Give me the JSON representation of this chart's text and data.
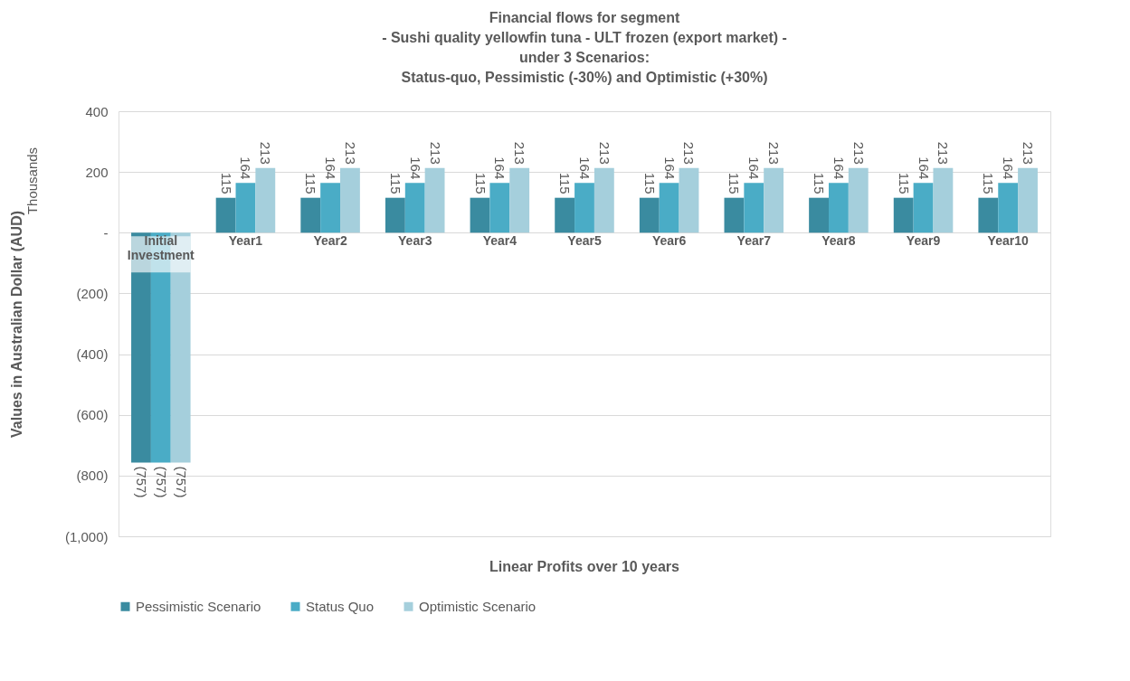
{
  "chart_data": {
    "type": "bar",
    "title": [
      "Financial flows for segment",
      "- Sushi quality yellowfin tuna - ULT frozen  (export market) -",
      "under 3 Scenarios:",
      "Status-quo, Pessimistic (-30%) and Optimistic (+30%)"
    ],
    "xlabel": "Linear Profits over 10 years",
    "ylabel": "Values in Australian Dollar (AUD)",
    "annotations": [
      "Thousands"
    ],
    "categories": [
      "Initial Investment",
      "Year1",
      "Year2",
      "Year3",
      "Year4",
      "Year5",
      "Year6",
      "Year7",
      "Year8",
      "Year9",
      "Year10"
    ],
    "series": [
      {
        "name": "Pessimistic Scenario",
        "color": "#3a8ba0",
        "values": [
          -757,
          115,
          115,
          115,
          115,
          115,
          115,
          115,
          115,
          115,
          115
        ],
        "value_labels": [
          "(757)",
          "115",
          "115",
          "115",
          "115",
          "115",
          "115",
          "115",
          "115",
          "115",
          "115"
        ]
      },
      {
        "name": "Status Quo",
        "color": "#4aacc6",
        "values": [
          -757,
          164,
          164,
          164,
          164,
          164,
          164,
          164,
          164,
          164,
          164
        ],
        "value_labels": [
          "(757)",
          "164",
          "164",
          "164",
          "164",
          "164",
          "164",
          "164",
          "164",
          "164",
          "164"
        ]
      },
      {
        "name": "Optimistic Scenario",
        "color": "#a5cfdc",
        "values": [
          -757,
          213,
          213,
          213,
          213,
          213,
          213,
          213,
          213,
          213,
          213
        ],
        "value_labels": [
          "(757)",
          "213",
          "213",
          "213",
          "213",
          "213",
          "213",
          "213",
          "213",
          "213",
          "213"
        ]
      }
    ],
    "ylim": [
      -1000,
      400
    ],
    "yticks": [
      400,
      200,
      {
        "value": 0,
        "label": "-"
      },
      {
        "value": -200,
        "label": "(200)"
      },
      {
        "value": -400,
        "label": "(400)"
      },
      {
        "value": -600,
        "label": "(600)"
      },
      {
        "value": -800,
        "label": "(800)"
      },
      {
        "value": -1000,
        "label": "(1,000)"
      }
    ],
    "grid": "y",
    "legend": "bottom"
  }
}
